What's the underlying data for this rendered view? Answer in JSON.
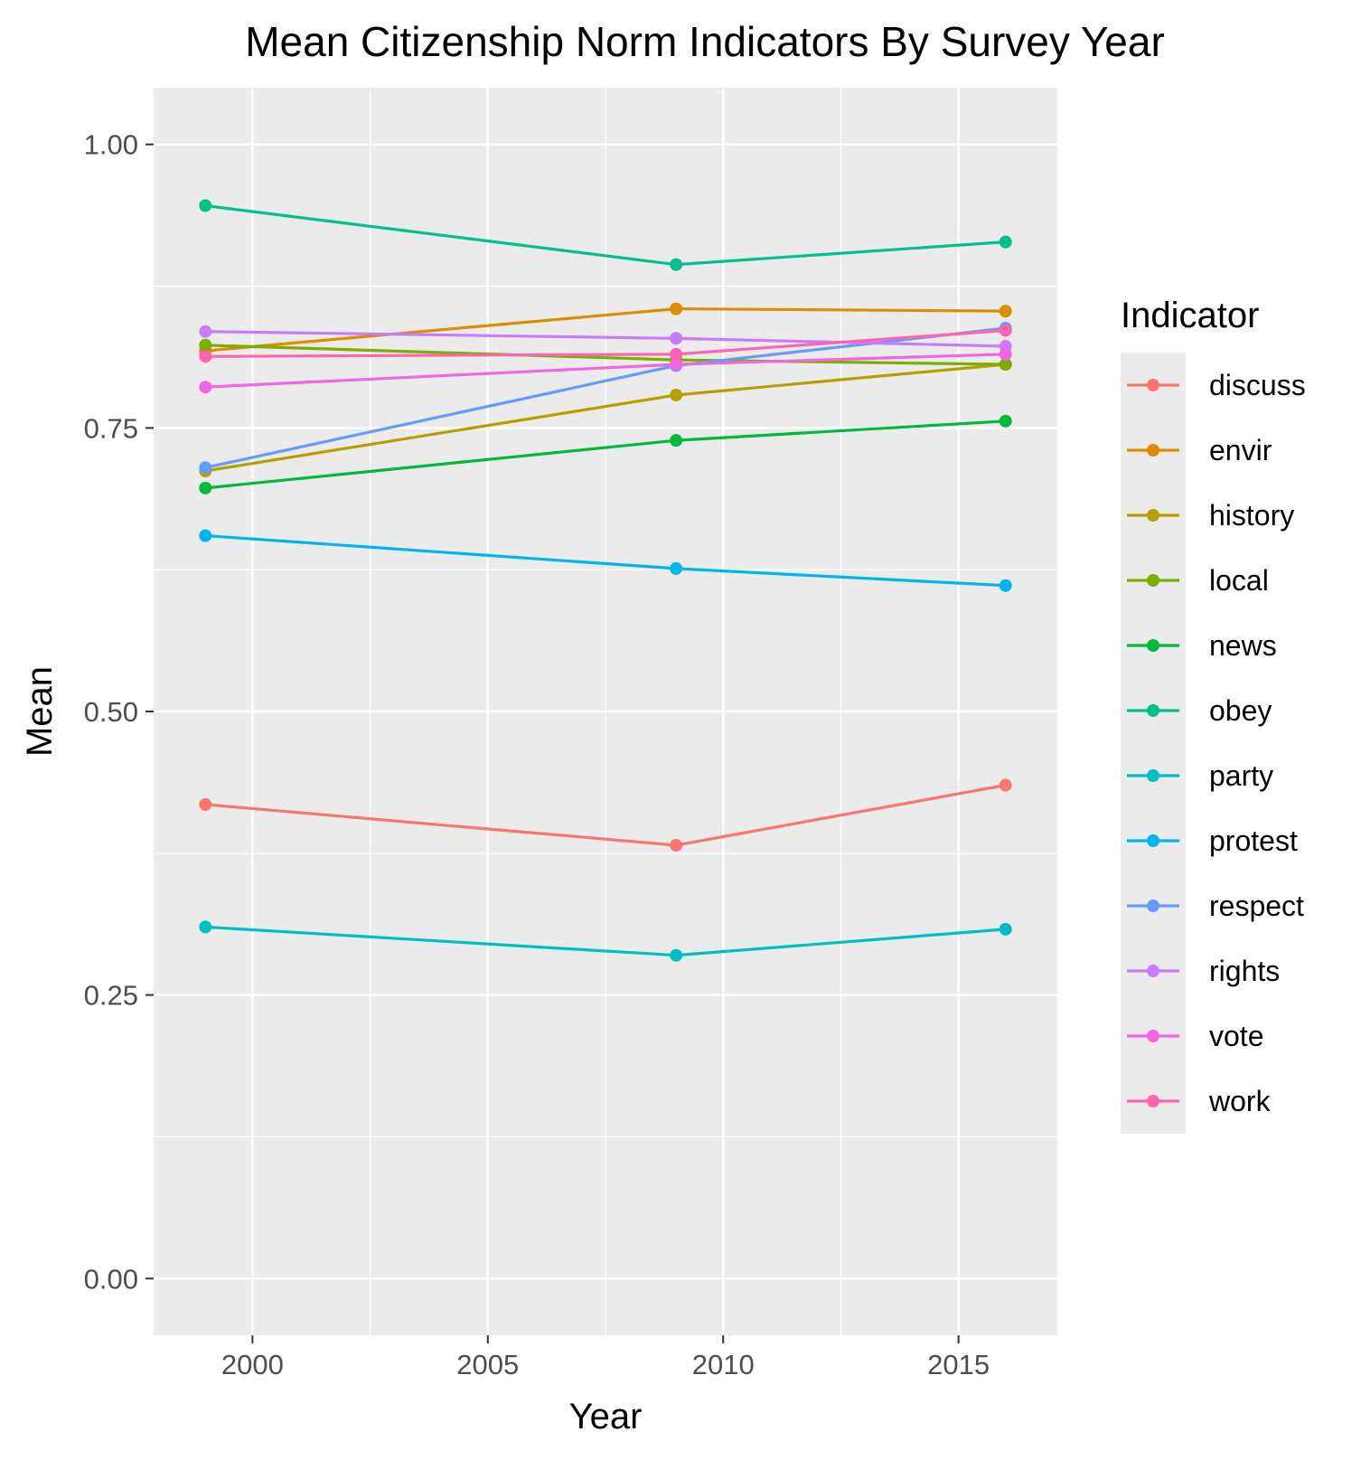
{
  "chart_data": {
    "type": "line",
    "title": "Mean Citizenship Norm Indicators By Survey Year",
    "xlabel": "Year",
    "ylabel": "Mean",
    "x": [
      1999,
      2009,
      2016
    ],
    "xlim": [
      1997.9,
      2017.1
    ],
    "ylim": [
      -0.05,
      1.05
    ],
    "x_ticks": [
      2000,
      2005,
      2010,
      2015
    ],
    "x_tick_labels": [
      "2000",
      "2005",
      "2010",
      "2015"
    ],
    "y_ticks": [
      0,
      0.25,
      0.5,
      0.75,
      1.0
    ],
    "y_tick_labels": [
      "0.00",
      "0.25",
      "0.50",
      "0.75",
      "1.00"
    ],
    "grid": true,
    "legend_title": "Indicator",
    "legend_position": "right",
    "series": [
      {
        "name": "discuss",
        "color": "#F8766D",
        "values": [
          0.418,
          0.382,
          0.435
        ]
      },
      {
        "name": "envir",
        "color": "#DE8C00",
        "values": [
          0.818,
          0.855,
          0.853
        ]
      },
      {
        "name": "history",
        "color": "#B79F00",
        "values": [
          0.712,
          0.779,
          0.806
        ]
      },
      {
        "name": "local",
        "color": "#7CAE00",
        "values": [
          0.823,
          0.81,
          0.806
        ]
      },
      {
        "name": "news",
        "color": "#00BA38",
        "values": [
          0.697,
          0.739,
          0.756
        ]
      },
      {
        "name": "obey",
        "color": "#00C08B",
        "values": [
          0.946,
          0.894,
          0.914
        ]
      },
      {
        "name": "party",
        "color": "#00BFC4",
        "values": [
          0.31,
          0.285,
          0.308
        ]
      },
      {
        "name": "protest",
        "color": "#00B4F0",
        "values": [
          0.655,
          0.626,
          0.611
        ]
      },
      {
        "name": "respect",
        "color": "#619CFF",
        "values": [
          0.715,
          0.805,
          0.838
        ]
      },
      {
        "name": "rights",
        "color": "#C77CFF",
        "values": [
          0.835,
          0.829,
          0.822
        ]
      },
      {
        "name": "vote",
        "color": "#F564E3",
        "values": [
          0.786,
          0.806,
          0.815
        ]
      },
      {
        "name": "work",
        "color": "#FF64B0",
        "values": [
          0.813,
          0.815,
          0.836
        ]
      }
    ]
  }
}
